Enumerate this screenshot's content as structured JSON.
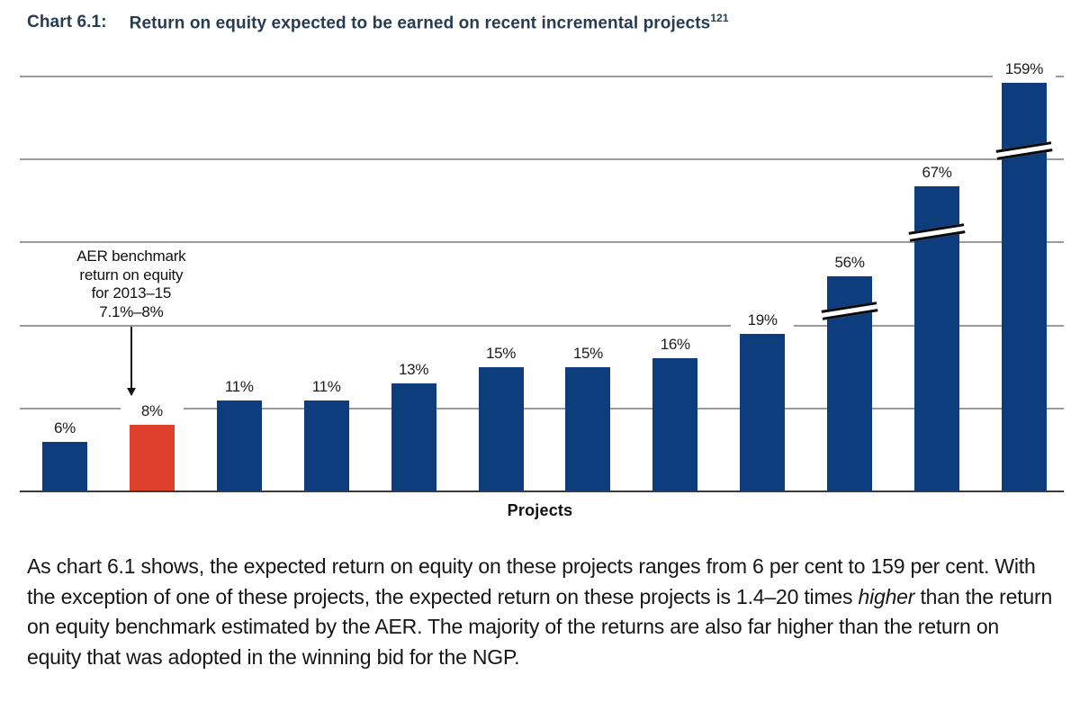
{
  "title": {
    "label": "Chart 6.1:",
    "text": "Return on equity expected to be earned on recent incremental projects",
    "superscript": "121"
  },
  "chart_data": {
    "type": "bar",
    "title": "Return on equity expected to be earned on recent incremental projects",
    "xlabel": "Projects",
    "ylabel": "",
    "ylim": [
      0,
      50
    ],
    "gridline_values": [
      10,
      20,
      30,
      40,
      50
    ],
    "grid": true,
    "legend": "none",
    "unit": "percent",
    "values": [
      6,
      8,
      11,
      11,
      13,
      15,
      15,
      16,
      19,
      56,
      67,
      159
    ],
    "labels": [
      "6%",
      "8%",
      "11%",
      "11%",
      "13%",
      "15%",
      "15%",
      "16%",
      "19%",
      "56%",
      "67%",
      "159%"
    ],
    "highlight_index": 1,
    "truncated_bars": [
      {
        "index": 9,
        "value": 56,
        "display_height_pct": 25.9,
        "break_at_pct": 21.8
      },
      {
        "index": 10,
        "value": 67,
        "display_height_pct": 36.8,
        "break_at_pct": 31.2
      },
      {
        "index": 11,
        "value": 159,
        "display_height_pct": 49.2,
        "break_at_pct": 41.0
      }
    ],
    "annotation": {
      "lines": [
        "AER benchmark",
        "return on equity",
        "for 2013–15",
        "7.1%–8%"
      ],
      "target_label": "8%"
    }
  },
  "body": {
    "paragraph": [
      {
        "text": "As chart 6.1 shows, the expected return on equity on these projects ranges from 6 per cent to 159 per cent. With the exception of one of these projects, the expected return on these projects is 1.4–20 times ",
        "style": "normal"
      },
      {
        "text": "higher",
        "style": "italic"
      },
      {
        "text": " than the return on equity benchmark estimated by the AER. The majority of the returns are also far higher than the return on equity that was adopted in the winning bid for the NGP.",
        "style": "normal"
      }
    ]
  },
  "colors": {
    "bar_navy": "#0e3d7d",
    "bar_red": "#df402e",
    "title_navy": "#273c52",
    "gridline": "#9b9b9b",
    "axis_line": "#3a3a3a",
    "body_text": "#161616"
  }
}
